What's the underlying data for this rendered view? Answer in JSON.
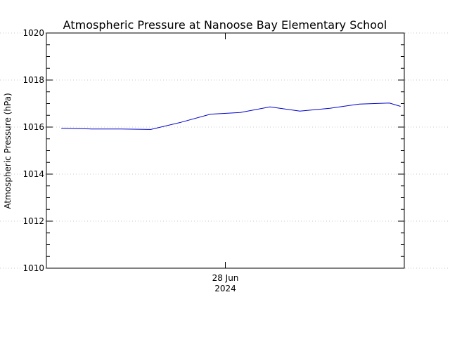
{
  "chart_data": {
    "type": "line",
    "title": "Atmospheric Pressure at Nanoose Bay Elementary School",
    "xlabel": "",
    "ylabel": "Atmospheric Pressure (hPa)",
    "ylim": [
      1010,
      1020
    ],
    "xlim": [
      "2024-06-27T12:00",
      "2024-06-28T12:00"
    ],
    "yticks": [
      "1010",
      "1012",
      "1014",
      "1016",
      "1018",
      "1020"
    ],
    "xticks": [
      {
        "value": "2024-06-28T00:00",
        "line1": "28 Jun",
        "line2": "2024"
      }
    ],
    "grid": true,
    "series_color": "#0000cc",
    "series": [
      {
        "x": [
          "2024-06-27T13:00",
          "2024-06-27T15:00",
          "2024-06-27T17:00",
          "2024-06-27T19:00",
          "2024-06-27T21:00",
          "2024-06-27T23:00",
          "2024-06-28T01:00",
          "2024-06-28T03:00",
          "2024-06-28T05:00",
          "2024-06-28T07:00",
          "2024-06-28T09:00",
          "2024-06-28T11:00",
          "2024-06-28T11:45"
        ],
        "values": [
          1015.95,
          1015.92,
          1015.92,
          1015.9,
          1016.2,
          1016.55,
          1016.62,
          1016.86,
          1016.68,
          1016.8,
          1016.98,
          1017.02,
          1016.88
        ]
      }
    ]
  }
}
